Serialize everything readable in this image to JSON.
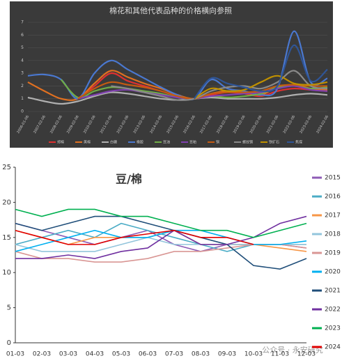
{
  "chart_data": [
    {
      "type": "line",
      "smooth": true,
      "title": "棉花和其他代表品种的价格横向参照",
      "legend": "bottom",
      "categories": [
        "2006-01-06",
        "2007-02-06",
        "2008-02-06",
        "2009-02-06",
        "2010-02-06",
        "2011-02-06",
        "2012-02-06",
        "2013-02-06",
        "2014-02-06",
        "2015-02-06",
        "2016-02-06",
        "2017-02-06",
        "2018-02-06",
        "2019-02-06",
        "2020-02-06",
        "2021-02-06",
        "2022-02-06",
        "2023-02-06",
        "2024-02-06"
      ],
      "ylim": [
        0,
        7
      ],
      "yticks": [
        0,
        1,
        2,
        3,
        4,
        5,
        6,
        7
      ],
      "series": [
        {
          "name": "郑棉",
          "color": "#e03030",
          "values": [
            null,
            null,
            null,
            1.0,
            2.0,
            3.0,
            2.4,
            2.0,
            1.6,
            1.2,
            1.0,
            1.3,
            1.5,
            1.4,
            1.2,
            1.6,
            1.8,
            1.7,
            1.6
          ]
        },
        {
          "name": "美棉",
          "color": "#e07020",
          "values": [
            2.3,
            1.6,
            1.0,
            1.0,
            2.2,
            3.2,
            2.7,
            2.2,
            1.8,
            1.3,
            1.0,
            1.4,
            1.6,
            1.5,
            1.3,
            1.9,
            2.1,
            1.8,
            1.7
          ]
        },
        {
          "name": "白糖",
          "color": "#b0b0b0",
          "values": [
            1.1,
            0.8,
            0.6,
            0.8,
            1.2,
            1.5,
            1.4,
            1.2,
            1.0,
            0.9,
            1.0,
            1.1,
            1.0,
            1.0,
            1.0,
            1.1,
            1.3,
            1.4,
            1.3
          ]
        },
        {
          "name": "橡胶",
          "color": "#4a78d0",
          "values": [
            2.8,
            2.9,
            2.5,
            1.0,
            3.0,
            4.0,
            3.3,
            2.6,
            1.9,
            1.3,
            1.0,
            2.5,
            1.8,
            1.6,
            1.3,
            1.8,
            6.3,
            2.3,
            2.6
          ]
        },
        {
          "name": "豆油",
          "color": "#70ad47",
          "values": [
            null,
            null,
            2.5,
            1.1,
            1.6,
            1.9,
            1.8,
            1.6,
            1.4,
            1.1,
            1.0,
            1.2,
            1.1,
            1.2,
            1.4,
            1.9,
            2.0,
            1.8,
            1.9
          ]
        },
        {
          "name": "豆粕",
          "color": "#8040b0",
          "values": [
            null,
            null,
            null,
            1.0,
            1.3,
            1.6,
            1.7,
            1.5,
            1.3,
            1.1,
            1.0,
            1.2,
            1.3,
            1.4,
            1.5,
            1.8,
            2.0,
            1.7,
            1.6
          ]
        },
        {
          "name": "铜",
          "color": "#c55a11",
          "values": [
            null,
            null,
            null,
            1.0,
            1.8,
            2.3,
            2.1,
            1.9,
            1.6,
            1.2,
            1.0,
            1.4,
            1.5,
            1.5,
            1.6,
            2.0,
            2.1,
            2.0,
            2.0
          ]
        },
        {
          "name": "螺纹钢",
          "color": "#8a8a8a",
          "values": [
            null,
            null,
            null,
            null,
            null,
            2.0,
            1.8,
            1.5,
            1.2,
            0.9,
            1.0,
            1.6,
            1.9,
            2.0,
            1.8,
            2.3,
            3.2,
            2.0,
            1.8
          ]
        },
        {
          "name": "铁矿石",
          "color": "#bf9000",
          "values": [
            null,
            null,
            null,
            null,
            null,
            null,
            null,
            null,
            null,
            null,
            1.0,
            1.8,
            1.6,
            1.7,
            2.3,
            2.8,
            2.2,
            2.1,
            2.3
          ]
        },
        {
          "name": "焦煤",
          "color": "#2f5597",
          "values": [
            null,
            null,
            null,
            null,
            null,
            null,
            null,
            null,
            null,
            null,
            1.0,
            2.6,
            2.2,
            1.9,
            1.6,
            2.0,
            5.2,
            2.4,
            3.3
          ]
        }
      ]
    },
    {
      "type": "line",
      "smooth": false,
      "title": "豆/棉",
      "legend": "right",
      "categories": [
        "01-03",
        "02-03",
        "03-03",
        "04-03",
        "05-03",
        "06-03",
        "07-03",
        "08-03",
        "09-03",
        "10-03",
        "11-03",
        "12-03"
      ],
      "ylim": [
        0,
        25
      ],
      "yticks": [
        0,
        5,
        10,
        15,
        20,
        25
      ],
      "series": [
        {
          "name": "2015",
          "color": "#8e5bb5",
          "values": [
            17,
            16,
            15,
            14,
            15,
            16,
            14,
            13,
            14,
            14,
            14,
            13.5
          ]
        },
        {
          "name": "2016",
          "color": "#4bacc6",
          "values": [
            14,
            15,
            16,
            15,
            17,
            16,
            15,
            14,
            13,
            14,
            14,
            14
          ]
        },
        {
          "name": "2017",
          "color": "#f79646",
          "values": [
            16,
            15,
            14,
            15,
            15,
            15,
            16,
            14,
            14,
            14,
            13.5,
            13
          ]
        },
        {
          "name": "2018",
          "color": "#93c5dc",
          "values": [
            14,
            13,
            13,
            13,
            14,
            15,
            14,
            14,
            14,
            14,
            14,
            14
          ]
        },
        {
          "name": "2019",
          "color": "#d99694",
          "values": [
            13,
            12,
            12,
            11.5,
            11.5,
            12,
            13,
            13,
            13.5,
            14,
            14,
            13.5
          ]
        },
        {
          "name": "2020",
          "color": "#00b0f0",
          "values": [
            13,
            14,
            15,
            16,
            15,
            15,
            16,
            16,
            15,
            14,
            14,
            14.5
          ]
        },
        {
          "name": "2021",
          "color": "#1f4e79",
          "values": [
            17,
            16,
            17,
            18,
            18,
            17,
            16,
            15,
            14,
            11,
            10.5,
            12
          ]
        },
        {
          "name": "2022",
          "color": "#7030a0",
          "values": [
            12,
            12,
            12.5,
            12,
            13,
            13.5,
            16,
            14,
            14,
            15,
            17,
            18
          ]
        },
        {
          "name": "2023",
          "color": "#00b050",
          "values": [
            19,
            18,
            19,
            19,
            18,
            18,
            17,
            16,
            16,
            15,
            16,
            17
          ]
        },
        {
          "name": "2024",
          "color": "#e00000",
          "values": [
            16,
            15,
            14,
            14,
            15,
            15.5,
            16,
            15,
            15,
            14,
            null,
            null
          ]
        }
      ]
    }
  ],
  "watermark": "公众号 · 永安研究"
}
